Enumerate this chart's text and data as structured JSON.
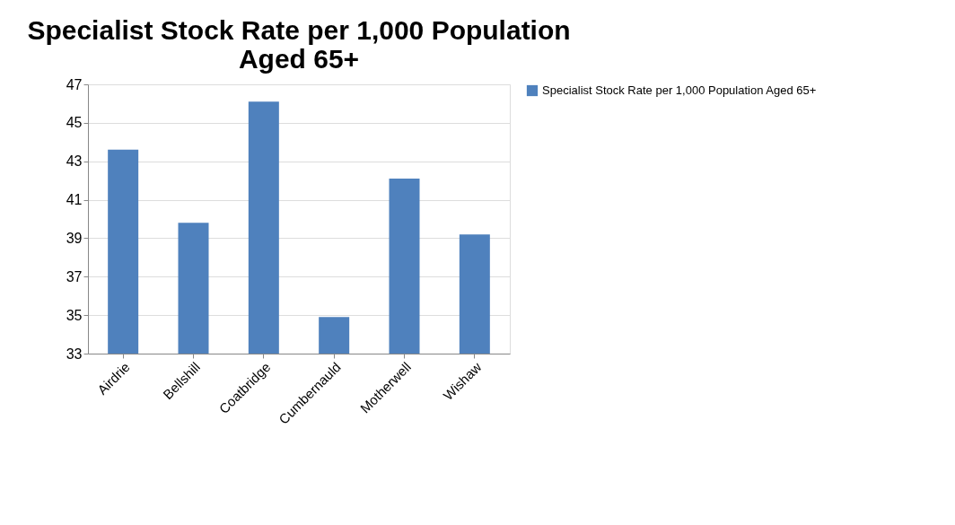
{
  "chart_data": {
    "type": "bar",
    "title": [
      "Specialist Stock Rate per 1,000 Population",
      "Aged 65+"
    ],
    "categories": [
      "Airdrie",
      "Bellshill",
      "Coatbridge",
      "Cumbernauld",
      "Motherwell",
      "Wishaw"
    ],
    "series": [
      {
        "name": "Specialist Stock Rate per 1,000 Population Aged 65+",
        "color": "#4f81bd",
        "values": [
          43.6,
          39.8,
          46.1,
          34.9,
          42.1,
          39.2
        ]
      }
    ],
    "ylim": [
      33,
      47
    ],
    "yticks": [
      33,
      35,
      37,
      39,
      41,
      43,
      45,
      47
    ],
    "grid": "y",
    "legend": "right"
  }
}
